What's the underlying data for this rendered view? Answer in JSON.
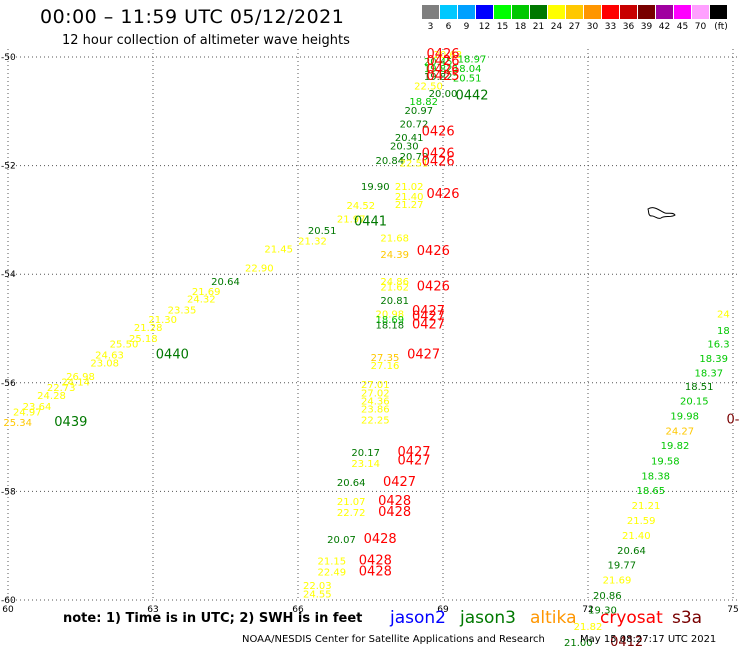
{
  "header": {
    "title": "00:00 – 11:59 UTC 05/12/2021",
    "subtitle": "12 hour collection of altimeter wave heights"
  },
  "colorbar": {
    "unit": "(ft)",
    "bins": [
      {
        "label": "3",
        "color": "#7f7f7f"
      },
      {
        "label": "6",
        "color": "#00c8ff"
      },
      {
        "label": "9",
        "color": "#00a0ff"
      },
      {
        "label": "12",
        "color": "#0000ff"
      },
      {
        "label": "15",
        "color": "#00ff00"
      },
      {
        "label": "18",
        "color": "#00c800"
      },
      {
        "label": "21",
        "color": "#007800"
      },
      {
        "label": "24",
        "color": "#ffff00"
      },
      {
        "label": "27",
        "color": "#ffc800"
      },
      {
        "label": "30",
        "color": "#ff9600"
      },
      {
        "label": "33",
        "color": "#ff0000"
      },
      {
        "label": "36",
        "color": "#c80000"
      },
      {
        "label": "39",
        "color": "#780000"
      },
      {
        "label": "42",
        "color": "#a000a0"
      },
      {
        "label": "45",
        "color": "#ff00ff"
      },
      {
        "label": "70",
        "color": "#ffa0ff"
      },
      {
        "label": "",
        "color": "#000000"
      }
    ]
  },
  "map": {
    "lon_range": [
      60,
      75
    ],
    "lat_range": [
      -60,
      -50
    ],
    "lon_ticks": [
      "60",
      "63",
      "66",
      "69",
      "72",
      "75"
    ],
    "lat_ticks": [
      "-50",
      "-52",
      "-54",
      "-56",
      "-58",
      "-60"
    ],
    "grid": "dotted"
  },
  "observations": [
    {
      "lon": 69.1,
      "lat": -50.02,
      "v": "20.63",
      "c": "#ffff00"
    },
    {
      "lon": 69.6,
      "lat": -50.1,
      "v": "18.97",
      "c": "#00c800"
    },
    {
      "lon": 68.9,
      "lat": -50.15,
      "v": "20.45",
      "c": "#00c800"
    },
    {
      "lon": 68.9,
      "lat": -50.28,
      "v": "19.82",
      "c": "#00c800"
    },
    {
      "lon": 69.5,
      "lat": -50.28,
      "v": "18.04",
      "c": "#00c800"
    },
    {
      "lon": 68.9,
      "lat": -50.42,
      "v": "19.82",
      "c": "#007800"
    },
    {
      "lon": 69.5,
      "lat": -50.45,
      "v": "20.51",
      "c": "#00c800"
    },
    {
      "lon": 68.7,
      "lat": -50.6,
      "v": "22.50",
      "c": "#ffff00"
    },
    {
      "lon": 69.0,
      "lat": -50.74,
      "v": "20.00",
      "c": "#007800"
    },
    {
      "lon": 68.6,
      "lat": -50.88,
      "v": "18.82",
      "c": "#00c800"
    },
    {
      "lon": 68.5,
      "lat": -51.05,
      "v": "20.97",
      "c": "#007800"
    },
    {
      "lon": 68.4,
      "lat": -51.3,
      "v": "20.72",
      "c": "#007800"
    },
    {
      "lon": 68.3,
      "lat": -51.55,
      "v": "20.41",
      "c": "#007800"
    },
    {
      "lon": 68.2,
      "lat": -51.7,
      "v": "20.30",
      "c": "#007800"
    },
    {
      "lon": 68.4,
      "lat": -51.9,
      "v": "20.79",
      "c": "#007800"
    },
    {
      "lon": 67.9,
      "lat": -51.97,
      "v": "20.84",
      "c": "#007800"
    },
    {
      "lon": 68.4,
      "lat": -52.02,
      "v": "22.51",
      "c": "#ffff00"
    },
    {
      "lon": 68.3,
      "lat": -52.45,
      "v": "21.02",
      "c": "#ffff00"
    },
    {
      "lon": 67.6,
      "lat": -52.45,
      "v": "19.90",
      "c": "#007800"
    },
    {
      "lon": 68.3,
      "lat": -52.63,
      "v": "21.40",
      "c": "#ffff00"
    },
    {
      "lon": 68.3,
      "lat": -52.78,
      "v": "21.27",
      "c": "#ffff00"
    },
    {
      "lon": 67.3,
      "lat": -52.8,
      "v": "24.52",
      "c": "#ffff00"
    },
    {
      "lon": 67.1,
      "lat": -53.05,
      "v": "21.97",
      "c": "#ffff00"
    },
    {
      "lon": 66.5,
      "lat": -53.26,
      "v": "20.51",
      "c": "#007800"
    },
    {
      "lon": 66.3,
      "lat": -53.45,
      "v": "21.32",
      "c": "#ffff00"
    },
    {
      "lon": 68.0,
      "lat": -53.4,
      "v": "21.68",
      "c": "#ffff00"
    },
    {
      "lon": 68.0,
      "lat": -53.7,
      "v": "24.39",
      "c": "#ffc800"
    },
    {
      "lon": 65.6,
      "lat": -53.6,
      "v": "21.45",
      "c": "#ffff00"
    },
    {
      "lon": 65.2,
      "lat": -53.95,
      "v": "22.90",
      "c": "#ffff00"
    },
    {
      "lon": 64.5,
      "lat": -54.2,
      "v": "20.64",
      "c": "#007800"
    },
    {
      "lon": 64.1,
      "lat": -54.38,
      "v": "21.69",
      "c": "#ffff00"
    },
    {
      "lon": 64.0,
      "lat": -54.52,
      "v": "24.32",
      "c": "#ffff00"
    },
    {
      "lon": 63.6,
      "lat": -54.72,
      "v": "23.35",
      "c": "#ffff00"
    },
    {
      "lon": 63.2,
      "lat": -54.9,
      "v": "21.30",
      "c": "#ffff00"
    },
    {
      "lon": 62.9,
      "lat": -55.05,
      "v": "21.28",
      "c": "#ffff00"
    },
    {
      "lon": 62.8,
      "lat": -55.25,
      "v": "25.18",
      "c": "#ffff00"
    },
    {
      "lon": 62.4,
      "lat": -55.35,
      "v": "25.50",
      "c": "#ffff00"
    },
    {
      "lon": 62.1,
      "lat": -55.55,
      "v": "24.63",
      "c": "#ffff00"
    },
    {
      "lon": 62.0,
      "lat": -55.7,
      "v": "23.08",
      "c": "#ffff00"
    },
    {
      "lon": 61.5,
      "lat": -55.95,
      "v": "26.98",
      "c": "#ffff00"
    },
    {
      "lon": 61.4,
      "lat": -56.05,
      "v": "24.14",
      "c": "#ffff00"
    },
    {
      "lon": 61.1,
      "lat": -56.15,
      "v": "22.73",
      "c": "#ffff00"
    },
    {
      "lon": 60.9,
      "lat": -56.3,
      "v": "24.28",
      "c": "#ffff00"
    },
    {
      "lon": 60.6,
      "lat": -56.5,
      "v": "23.64",
      "c": "#ffff00"
    },
    {
      "lon": 60.4,
      "lat": -56.6,
      "v": "24.97",
      "c": "#ffff00"
    },
    {
      "lon": 60.2,
      "lat": -56.8,
      "v": "25.34",
      "c": "#ffc800"
    },
    {
      "lon": 68.0,
      "lat": -54.2,
      "v": "24.86",
      "c": "#ffff00"
    },
    {
      "lon": 68.0,
      "lat": -54.3,
      "v": "21.62",
      "c": "#ffff00"
    },
    {
      "lon": 68.0,
      "lat": -54.55,
      "v": "20.81",
      "c": "#007800"
    },
    {
      "lon": 67.9,
      "lat": -54.8,
      "v": "20.98",
      "c": "#ffff00"
    },
    {
      "lon": 67.9,
      "lat": -54.9,
      "v": "18.69",
      "c": "#00c800"
    },
    {
      "lon": 67.9,
      "lat": -55.0,
      "v": "18.18",
      "c": "#007800"
    },
    {
      "lon": 67.8,
      "lat": -55.6,
      "v": "27.35",
      "c": "#ffc800"
    },
    {
      "lon": 67.8,
      "lat": -55.75,
      "v": "27.16",
      "c": "#ffff00"
    },
    {
      "lon": 67.6,
      "lat": -56.1,
      "v": "27.01",
      "c": "#ffff00"
    },
    {
      "lon": 67.6,
      "lat": -56.25,
      "v": "27.02",
      "c": "#ffff00"
    },
    {
      "lon": 67.6,
      "lat": -56.4,
      "v": "24.36",
      "c": "#ffff00"
    },
    {
      "lon": 67.6,
      "lat": -56.55,
      "v": "23.86",
      "c": "#ffff00"
    },
    {
      "lon": 67.6,
      "lat": -56.75,
      "v": "22.25",
      "c": "#ffff00"
    },
    {
      "lon": 67.4,
      "lat": -57.35,
      "v": "20.17",
      "c": "#007800"
    },
    {
      "lon": 67.4,
      "lat": -57.55,
      "v": "23.14",
      "c": "#ffff00"
    },
    {
      "lon": 67.1,
      "lat": -57.9,
      "v": "20.64",
      "c": "#007800"
    },
    {
      "lon": 67.1,
      "lat": -58.25,
      "v": "21.07",
      "c": "#ffff00"
    },
    {
      "lon": 67.1,
      "lat": -58.45,
      "v": "22.72",
      "c": "#ffff00"
    },
    {
      "lon": 66.9,
      "lat": -58.95,
      "v": "20.07",
      "c": "#007800"
    },
    {
      "lon": 66.7,
      "lat": -59.35,
      "v": "21.15",
      "c": "#ffff00"
    },
    {
      "lon": 66.7,
      "lat": -59.55,
      "v": "22.49",
      "c": "#ffff00"
    },
    {
      "lon": 66.4,
      "lat": -59.8,
      "v": "22.03",
      "c": "#ffff00"
    },
    {
      "lon": 66.4,
      "lat": -59.95,
      "v": "24.55",
      "c": "#ffff00"
    },
    {
      "lon": 74.8,
      "lat": -54.8,
      "v": "24",
      "c": "#ffff00"
    },
    {
      "lon": 74.8,
      "lat": -55.1,
      "v": "18",
      "c": "#00c800"
    },
    {
      "lon": 74.7,
      "lat": -55.35,
      "v": "16.3",
      "c": "#00c800"
    },
    {
      "lon": 74.6,
      "lat": -55.62,
      "v": "18.39",
      "c": "#00c800"
    },
    {
      "lon": 74.5,
      "lat": -55.88,
      "v": "18.37",
      "c": "#00c800"
    },
    {
      "lon": 74.3,
      "lat": -56.13,
      "v": "18.51",
      "c": "#007800"
    },
    {
      "lon": 74.2,
      "lat": -56.4,
      "v": "20.15",
      "c": "#00c800"
    },
    {
      "lon": 74.0,
      "lat": -56.68,
      "v": "19.98",
      "c": "#00c800"
    },
    {
      "lon": 73.9,
      "lat": -56.95,
      "v": "24.27",
      "c": "#ffc800"
    },
    {
      "lon": 73.8,
      "lat": -57.22,
      "v": "19.82",
      "c": "#00c800"
    },
    {
      "lon": 73.6,
      "lat": -57.5,
      "v": "19.58",
      "c": "#00c800"
    },
    {
      "lon": 73.4,
      "lat": -57.78,
      "v": "18.38",
      "c": "#00c800"
    },
    {
      "lon": 73.3,
      "lat": -58.05,
      "v": "18.65",
      "c": "#00c800"
    },
    {
      "lon": 73.2,
      "lat": -58.32,
      "v": "21.21",
      "c": "#ffff00"
    },
    {
      "lon": 73.1,
      "lat": -58.6,
      "v": "21.59",
      "c": "#ffff00"
    },
    {
      "lon": 73.0,
      "lat": -58.88,
      "v": "21.40",
      "c": "#ffff00"
    },
    {
      "lon": 72.9,
      "lat": -59.15,
      "v": "20.64",
      "c": "#007800"
    },
    {
      "lon": 72.7,
      "lat": -59.42,
      "v": "19.77",
      "c": "#007800"
    },
    {
      "lon": 72.6,
      "lat": -59.7,
      "v": "21.69",
      "c": "#ffff00"
    },
    {
      "lon": 72.4,
      "lat": -59.98,
      "v": "20.86",
      "c": "#007800"
    },
    {
      "lon": 72.3,
      "lat": -60.25,
      "v": "19.30",
      "c": "#007800"
    },
    {
      "lon": 72.0,
      "lat": -60.55,
      "v": "21.82",
      "c": "#ffff00"
    },
    {
      "lon": 71.8,
      "lat": -60.85,
      "v": "21.00",
      "c": "#007800"
    }
  ],
  "pass_labels": [
    {
      "lon": 69.0,
      "lat": -50.02,
      "t": "0426",
      "c": "#ff0000"
    },
    {
      "lon": 69.0,
      "lat": -50.15,
      "t": "0426",
      "c": "#ff0000"
    },
    {
      "lon": 69.0,
      "lat": -50.3,
      "t": "0426",
      "c": "#ff0000"
    },
    {
      "lon": 69.0,
      "lat": -50.42,
      "t": "0425",
      "c": "#ff0000"
    },
    {
      "lon": 69.6,
      "lat": -50.78,
      "t": "0442",
      "c": "#007800"
    },
    {
      "lon": 68.9,
      "lat": -51.45,
      "t": "0426",
      "c": "#ff0000"
    },
    {
      "lon": 68.9,
      "lat": -51.85,
      "t": "0426",
      "c": "#ff0000"
    },
    {
      "lon": 68.9,
      "lat": -52.0,
      "t": "0426",
      "c": "#ff0000"
    },
    {
      "lon": 69.0,
      "lat": -52.6,
      "t": "0426",
      "c": "#ff0000"
    },
    {
      "lon": 67.5,
      "lat": -53.1,
      "t": "0441",
      "c": "#007800"
    },
    {
      "lon": 68.8,
      "lat": -53.65,
      "t": "0426",
      "c": "#ff0000"
    },
    {
      "lon": 68.8,
      "lat": -54.3,
      "t": "0426",
      "c": "#ff0000"
    },
    {
      "lon": 68.7,
      "lat": -54.75,
      "t": "0427",
      "c": "#ff0000"
    },
    {
      "lon": 68.7,
      "lat": -54.85,
      "t": "0427",
      "c": "#ff0000"
    },
    {
      "lon": 68.7,
      "lat": -55.0,
      "t": "0427",
      "c": "#ff0000"
    },
    {
      "lon": 68.6,
      "lat": -55.55,
      "t": "0427",
      "c": "#ff0000"
    },
    {
      "lon": 63.4,
      "lat": -55.55,
      "t": "0440",
      "c": "#007800"
    },
    {
      "lon": 61.3,
      "lat": -56.8,
      "t": "0439",
      "c": "#007800"
    },
    {
      "lon": 68.4,
      "lat": -57.35,
      "t": "0427",
      "c": "#ff0000"
    },
    {
      "lon": 68.4,
      "lat": -57.5,
      "t": "0427",
      "c": "#ff0000"
    },
    {
      "lon": 68.1,
      "lat": -57.9,
      "t": "0427",
      "c": "#ff0000"
    },
    {
      "lon": 68.0,
      "lat": -58.25,
      "t": "0428",
      "c": "#ff0000"
    },
    {
      "lon": 68.0,
      "lat": -58.45,
      "t": "0428",
      "c": "#ff0000"
    },
    {
      "lon": 67.7,
      "lat": -58.95,
      "t": "0428",
      "c": "#ff0000"
    },
    {
      "lon": 67.6,
      "lat": -59.35,
      "t": "0428",
      "c": "#ff0000"
    },
    {
      "lon": 67.6,
      "lat": -59.55,
      "t": "0428",
      "c": "#ff0000"
    },
    {
      "lon": 75.0,
      "lat": -56.75,
      "t": "0-",
      "c": "#780000"
    },
    {
      "lon": 72.8,
      "lat": -60.85,
      "t": "0412",
      "c": "#780000"
    }
  ],
  "footer": {
    "note": "note: 1) Time is in UTC; 2) SWH is in feet",
    "satellites": [
      {
        "name": "jason2",
        "color": "#0000ff"
      },
      {
        "name": "jason3",
        "color": "#007800"
      },
      {
        "name": "altika",
        "color": "#ff9600"
      },
      {
        "name": "cryosat",
        "color": "#ff0000"
      },
      {
        "name": "s3a",
        "color": "#780000"
      }
    ],
    "credit": "NOAA/NESDIS Center for Satellite Applications and Research",
    "timestamp": "May 15 08:27:17 UTC 2021"
  }
}
